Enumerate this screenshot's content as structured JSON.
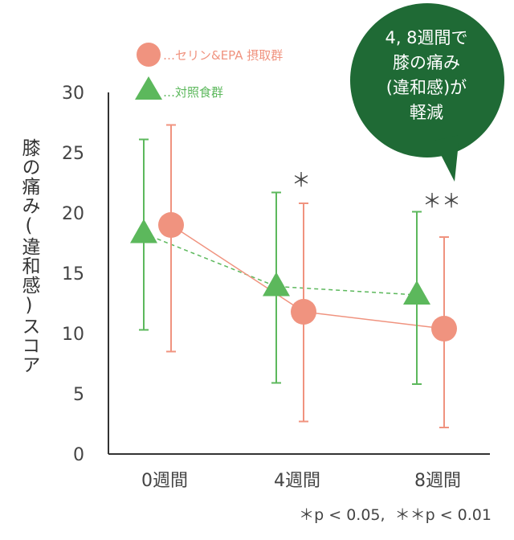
{
  "chart_data": {
    "type": "line",
    "ylabel": "膝の痛み(違和感)スコア",
    "ylim": [
      0,
      30
    ],
    "yticks": [
      0,
      5,
      10,
      15,
      20,
      25,
      30
    ],
    "categories": [
      "0週間",
      "4週間",
      "8週間"
    ],
    "series": [
      {
        "name": "…セリン&EPA 摂取群",
        "marker": "circle",
        "line": "solid",
        "color": "#f0937f",
        "values": [
          19.0,
          11.8,
          10.4
        ],
        "err_low": [
          8.5,
          2.7,
          2.2
        ],
        "err_high": [
          27.3,
          20.8,
          18.0
        ]
      },
      {
        "name": "…対照食群",
        "marker": "triangle",
        "line": "dashed",
        "color": "#5cb85c",
        "values": [
          18.3,
          13.9,
          13.2
        ],
        "err_low": [
          10.3,
          5.9,
          5.8
        ],
        "err_high": [
          26.1,
          21.7,
          20.1
        ]
      }
    ],
    "significance": [
      {
        "category": "4週間",
        "mark": "＊"
      },
      {
        "category": "8週間",
        "mark": "＊＊"
      }
    ],
    "footnote": "＊p < 0.05,  ＊＊p < 0.01",
    "callout": {
      "lines": [
        "4, 8週間で",
        "膝の痛み",
        "(違和感)が",
        "軽減"
      ],
      "color": "#1f6a35"
    },
    "legend_position": "top-left",
    "grid": false
  }
}
